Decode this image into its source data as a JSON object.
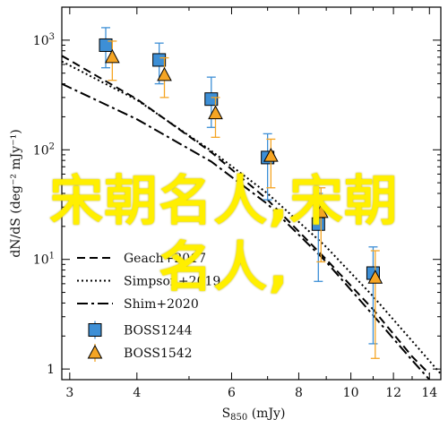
{
  "chart_data": {
    "type": "scatter",
    "title": "",
    "xlabel_main": "S",
    "xlabel_sub": "850",
    "xlabel_unit": " (mJy)",
    "ylabel": "dN/dS (deg⁻² mJy⁻¹)",
    "x_scale": "log",
    "y_scale": "log",
    "xlim": [
      2.9,
      14.7
    ],
    "ylim": [
      0.8,
      2000
    ],
    "x_ticks": [
      3,
      4,
      6,
      8,
      10,
      12,
      14
    ],
    "x_tick_labels": [
      "3",
      "4",
      "6",
      "8",
      "10",
      "12",
      "14"
    ],
    "y_ticks": [
      1,
      10,
      100,
      1000
    ],
    "y_tick_labels": [
      "1",
      "10¹",
      "10²",
      "10³"
    ],
    "legend_position": "bottom-left",
    "lines": [
      {
        "name": "Geach+2017",
        "style": "dashed",
        "x": [
          2.9,
          4.0,
          5.5,
          7.0,
          9.0,
          11.0,
          13.0,
          14.0
        ],
        "y": [
          720,
          290,
          95,
          35,
          10,
          3.5,
          1.3,
          0.9
        ]
      },
      {
        "name": "Simpson+2019",
        "style": "dotted",
        "x": [
          2.9,
          4.0,
          5.5,
          7.0,
          9.0,
          11.0,
          13.0,
          14.7
        ],
        "y": [
          640,
          285,
          98,
          40,
          13,
          4.6,
          1.8,
          0.9
        ]
      },
      {
        "name": "Shim+2020",
        "style": "dashdot",
        "x": [
          2.9,
          4.0,
          5.5,
          7.0,
          9.0,
          11.0,
          13.0,
          14.0
        ],
        "y": [
          400,
          190,
          78,
          32,
          9.5,
          3.1,
          1.2,
          0.8
        ]
      }
    ],
    "points": [
      {
        "name": "BOSS1244",
        "marker": "square",
        "color": "#3d8fd6",
        "x": [
          3.5,
          4.4,
          5.5,
          7.0,
          8.7,
          11.0
        ],
        "y": [
          900,
          660,
          290,
          85,
          21,
          7.5
        ],
        "y_lo": [
          560,
          400,
          160,
          35,
          6.3,
          1.7
        ],
        "y_hi": [
          1300,
          940,
          460,
          140,
          40,
          13
        ]
      },
      {
        "name": "BOSS1542",
        "marker": "triangle",
        "color": "#f5a524",
        "x": [
          3.6,
          4.5,
          5.6,
          7.1,
          8.8,
          11.1
        ],
        "y": [
          700,
          480,
          215,
          88,
          27,
          6.8
        ],
        "y_lo": [
          430,
          300,
          130,
          45,
          9.5,
          1.25
        ],
        "y_hi": [
          980,
          690,
          300,
          125,
          45,
          12
        ]
      }
    ]
  },
  "overlay": {
    "line1": "宋朝名人,宋朝",
    "line2": "名人,"
  }
}
